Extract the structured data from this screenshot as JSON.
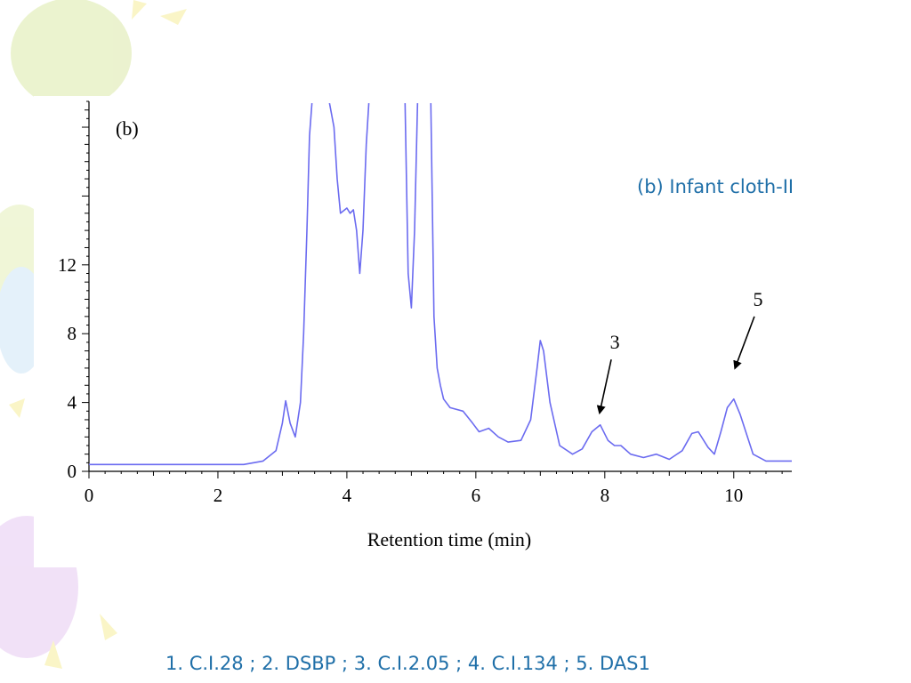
{
  "caption": "(b) Infant cloth-II",
  "footer_legend": "1. C.I.28 ; 2. DSBP ; 3. C.I.2.05 ; 4. C.I.134 ; 5. DAS1",
  "colors": {
    "trace": "#6b6bf0",
    "accent_text": "#1f6fa8",
    "axis": "#000000"
  },
  "chart_data": {
    "type": "line",
    "panel_label": "(b)",
    "xlabel": "Retention time (min)",
    "ylabel": "",
    "xlim": [
      0,
      10.9
    ],
    "ylim": [
      0,
      21.5
    ],
    "x_ticks": [
      0,
      2,
      4,
      6,
      8,
      10
    ],
    "y_ticks": [
      0,
      4,
      8,
      12
    ],
    "grid": false,
    "series": [
      {
        "x": [
          0,
          2.4,
          2.7,
          2.9,
          3.0,
          3.05,
          3.12,
          3.2,
          3.28,
          3.33,
          3.38,
          3.42,
          3.47,
          3.52,
          3.6,
          3.7,
          3.8,
          3.85,
          3.9,
          4.0,
          4.05,
          4.1,
          4.15,
          4.2,
          4.25,
          4.3,
          4.35,
          4.42,
          4.5,
          4.6,
          4.7,
          4.8,
          4.9,
          4.95,
          5.0,
          5.05,
          5.1,
          5.2,
          5.3,
          5.35,
          5.4,
          5.45,
          5.5,
          5.6,
          5.8,
          5.95,
          6.05,
          6.2,
          6.35,
          6.5,
          6.7,
          6.85,
          6.95,
          7.0,
          7.05,
          7.15,
          7.3,
          7.5,
          7.65,
          7.8,
          7.93,
          8.05,
          8.15,
          8.25,
          8.4,
          8.6,
          8.8,
          9.0,
          9.2,
          9.35,
          9.45,
          9.6,
          9.7,
          9.8,
          9.9,
          10.0,
          10.1,
          10.3,
          10.5,
          10.9
        ],
        "y": [
          0.4,
          0.4,
          0.6,
          1.2,
          2.8,
          4.1,
          2.8,
          2.0,
          4.0,
          8.0,
          14.0,
          19.5,
          22.0,
          22.0,
          22.0,
          22.0,
          20.0,
          17.0,
          15.0,
          15.3,
          15.0,
          15.2,
          14.0,
          11.5,
          14.0,
          19.0,
          22.0,
          22.0,
          22.0,
          22.0,
          22.0,
          22.0,
          22.0,
          11.5,
          9.5,
          14.0,
          22.0,
          22.0,
          22.0,
          9.0,
          6.0,
          5.0,
          4.2,
          3.7,
          3.5,
          2.8,
          2.3,
          2.5,
          2.0,
          1.7,
          1.8,
          3.0,
          6.0,
          7.6,
          7.0,
          4.0,
          1.5,
          1.0,
          1.3,
          2.3,
          2.7,
          1.8,
          1.5,
          1.5,
          1.0,
          0.8,
          1.0,
          0.7,
          1.2,
          2.2,
          2.3,
          1.4,
          1.0,
          2.3,
          3.7,
          4.2,
          3.3,
          1.0,
          0.6,
          0.6
        ]
      }
    ],
    "annotations": [
      {
        "text": "3",
        "tail": [
          8.1,
          6.5
        ],
        "head": [
          7.92,
          3.4
        ]
      },
      {
        "text": "5",
        "tail": [
          10.32,
          9.0
        ],
        "head": [
          10.02,
          6.0
        ]
      }
    ]
  }
}
